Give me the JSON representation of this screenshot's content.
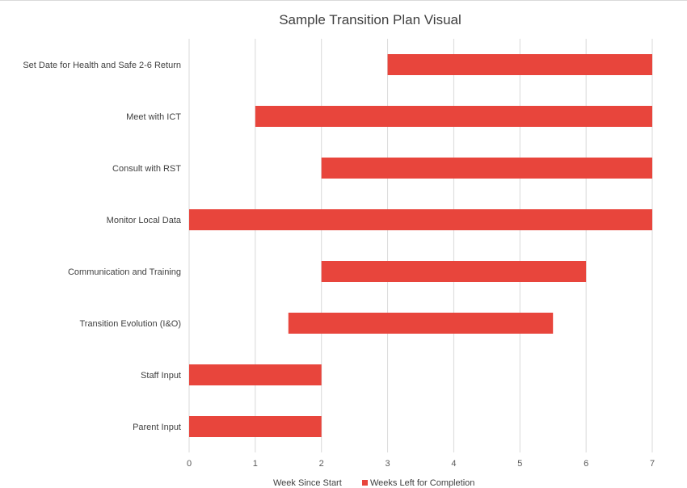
{
  "chart_data": {
    "type": "bar",
    "orientation": "horizontal",
    "stacked": true,
    "title": "Sample Transition Plan Visual",
    "categories": [
      "Set Date for Health and Safe 2-6 Return",
      "Meet with ICT",
      "Consult with RST",
      "Monitor Local Data",
      "Communication and Training",
      "Transition Evolution (I&O)",
      "Staff Input",
      "Parent Input"
    ],
    "series": [
      {
        "name": "Week Since Start",
        "color": "none",
        "values": [
          3,
          1,
          2,
          0,
          2,
          1.5,
          0,
          0
        ]
      },
      {
        "name": "Weeks Left for Completion",
        "color": "#e8453c",
        "values": [
          4,
          6,
          5,
          7,
          4,
          4,
          2,
          2
        ]
      }
    ],
    "xlim": [
      0,
      7
    ],
    "xticks": [
      "0",
      "1",
      "2",
      "3",
      "4",
      "5",
      "6",
      "7"
    ],
    "grid": true,
    "legend": "bottom"
  }
}
